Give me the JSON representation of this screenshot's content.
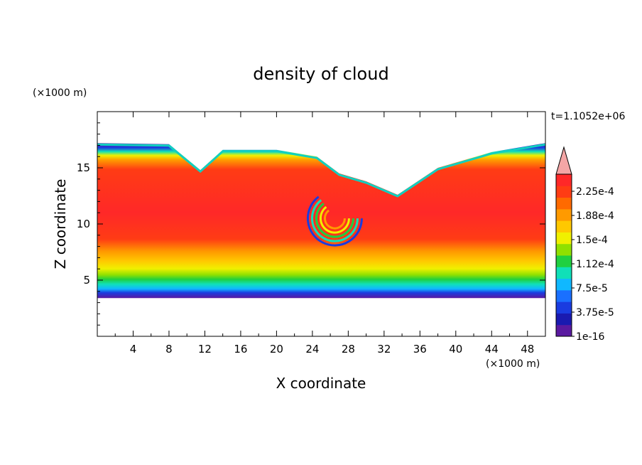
{
  "chart_data": {
    "type": "heatmap",
    "title": "density of cloud",
    "xlabel": "X coordinate",
    "ylabel": "Z coordinate",
    "x_unit": "(×1000 m)",
    "y_unit": "(×1000 m)",
    "time_label": "t=1.1052e+06",
    "xlim": [
      0,
      50
    ],
    "ylim": [
      0,
      20
    ],
    "x_ticks": [
      "4",
      "8",
      "12",
      "16",
      "20",
      "24",
      "28",
      "32",
      "36",
      "40",
      "44",
      "48"
    ],
    "x_tick_values": [
      4,
      8,
      12,
      16,
      20,
      24,
      28,
      32,
      36,
      40,
      44,
      48
    ],
    "y_ticks": [
      "5",
      "10",
      "15"
    ],
    "y_tick_values": [
      5,
      10,
      15
    ],
    "cloud_layer": {
      "bottom": 3.4,
      "top_left": 17.2,
      "top_right": 17.2,
      "dip1_x": 11.5,
      "dip1_z": 14.8,
      "dip2_x": 24.5,
      "dip2_z": 16.0,
      "dip3_x": 33.5,
      "dip3_z": 12.6
    },
    "colorbar": {
      "labels": [
        "2.25e-4",
        "1.88e-4",
        "1.5e-4",
        "1.12e-4",
        "7.5e-5",
        "3.75e-5",
        "1e-16"
      ],
      "label_values": [
        0.000225,
        0.000188,
        0.00015,
        0.000112,
        7.5e-05,
        3.75e-05,
        1e-16
      ],
      "colors": [
        "#5a1aa0",
        "#1a1ab0",
        "#1a3ce0",
        "#1a70ff",
        "#10b8ff",
        "#10e0b8",
        "#20d040",
        "#90e000",
        "#f0f000",
        "#ffc800",
        "#ff9a00",
        "#ff6a00",
        "#ff3c14",
        "#ff2828"
      ],
      "over_color": "#f4a6a6"
    }
  }
}
